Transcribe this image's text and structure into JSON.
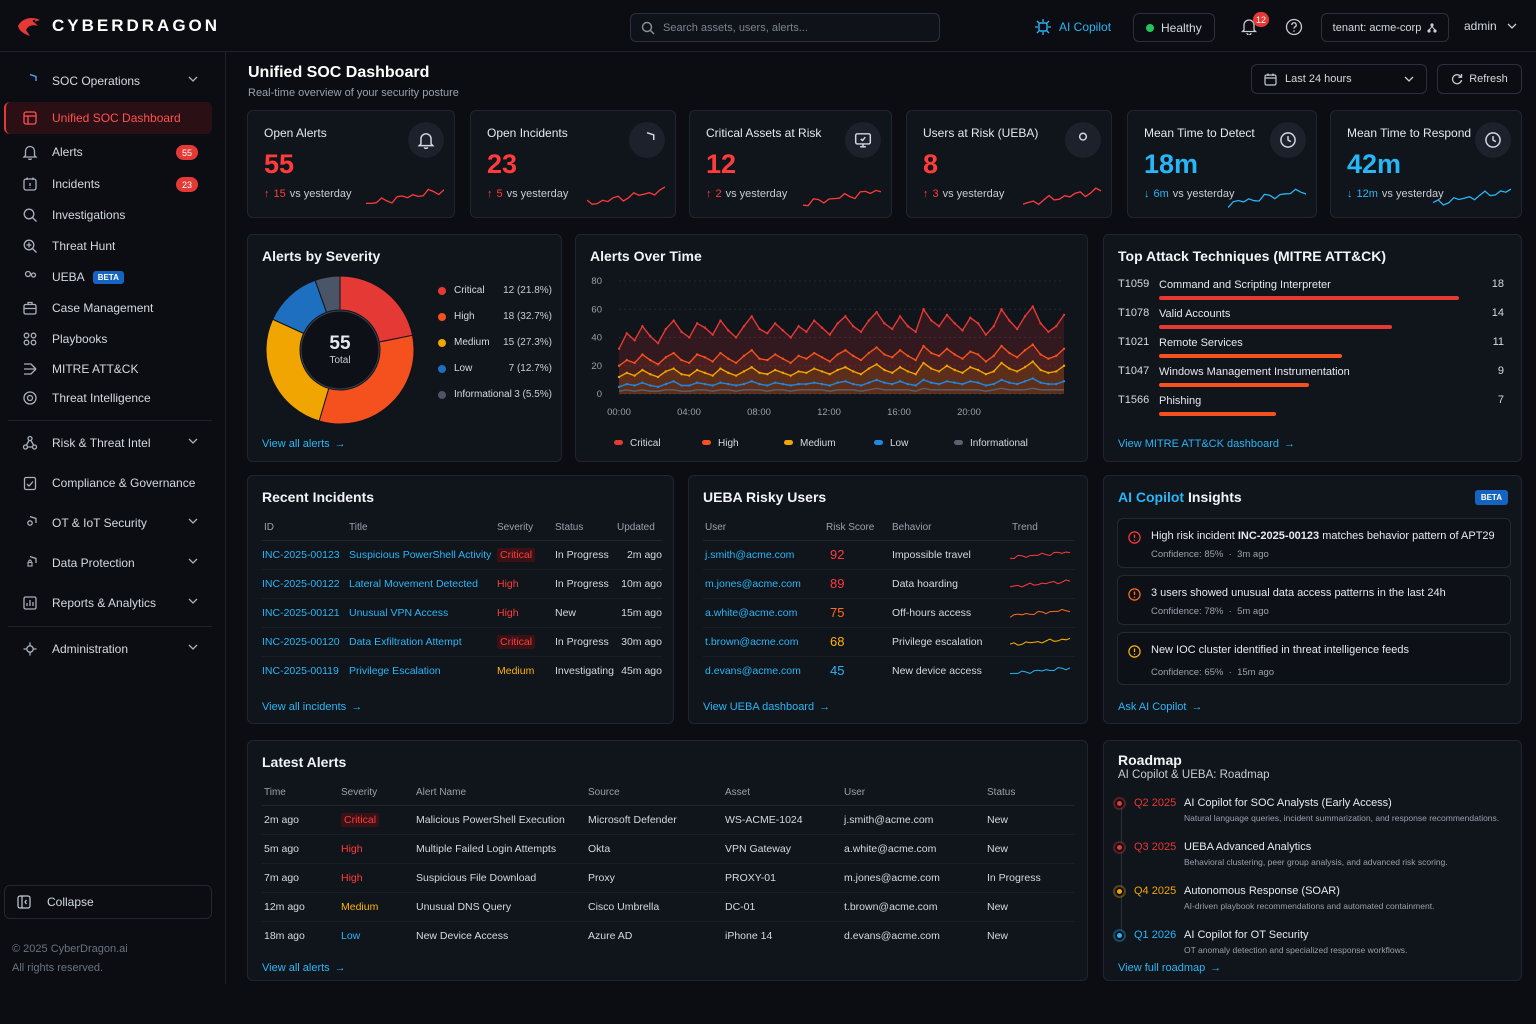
{
  "app": {
    "name": "CYBERDRAGON"
  },
  "topbar": {
    "search_placeholder": "Search assets, users, alerts...",
    "copilot_label": "AI Copilot",
    "health_label": "Healthy",
    "notifications_count": "12",
    "tenant_label": "tenant: acme-corp",
    "user_label": "admin"
  },
  "sidebar": {
    "items": [
      {
        "label": "SOC Operations",
        "icon": "shield-icon"
      },
      {
        "label": "Unified SOC Dashboard",
        "icon": "dashboard-icon"
      },
      {
        "label": "Alerts",
        "icon": "bell-icon",
        "badge": "55"
      },
      {
        "label": "Incidents",
        "icon": "incident-icon",
        "badge": "23"
      },
      {
        "label": "Investigations",
        "icon": "search-icon"
      },
      {
        "label": "Threat Hunt",
        "icon": "hunt-icon"
      },
      {
        "label": "UEBA",
        "icon": "users-icon",
        "tag": "BETA"
      },
      {
        "label": "Case Management",
        "icon": "briefcase-icon"
      },
      {
        "label": "Playbooks",
        "icon": "playbook-icon"
      },
      {
        "label": "MITRE ATT&CK",
        "icon": "matrix-icon"
      },
      {
        "label": "Threat Intelligence",
        "icon": "intel-icon"
      },
      {
        "label": "Risk & Threat Intel",
        "icon": "risk-icon"
      },
      {
        "label": "Compliance & Governance",
        "icon": "compliance-icon"
      },
      {
        "label": "OT & IoT Security",
        "icon": "ot-icon"
      },
      {
        "label": "Data Protection",
        "icon": "lock-shield-icon"
      },
      {
        "label": "Reports & Analytics",
        "icon": "report-icon"
      },
      {
        "label": "Administration",
        "icon": "admin-icon"
      }
    ],
    "collapse_label": "Collapse",
    "footer_copyright": "© 2025 CyberDragon.ai",
    "footer_rights": "All rights reserved."
  },
  "header": {
    "title": "Unified SOC Dashboard",
    "subtitle": "Real-time overview of your security posture",
    "range_label": "Last 24 hours",
    "refresh_label": "Refresh"
  },
  "kpis": [
    {
      "label": "Open Alerts",
      "value": "55",
      "delta": "15",
      "delta_suffix": "vs yesterday",
      "direction": "up",
      "color": "#ff3b3b",
      "icon": "bell-icon"
    },
    {
      "label": "Open Incidents",
      "value": "23",
      "delta": "5",
      "delta_suffix": "vs yesterday",
      "direction": "up",
      "color": "#ff3b3b",
      "icon": "shield-icon"
    },
    {
      "label": "Critical Assets at Risk",
      "value": "12",
      "delta": "2",
      "delta_suffix": "vs yesterday",
      "direction": "up",
      "color": "#ff3b3b",
      "icon": "monitor-icon"
    },
    {
      "label": "Users at Risk (UEBA)",
      "value": "8",
      "delta": "3",
      "delta_suffix": "vs yesterday",
      "direction": "up",
      "color": "#ff3b3b",
      "icon": "user-icon"
    },
    {
      "label": "Mean Time to Detect",
      "value": "18m",
      "delta": "6m",
      "delta_suffix": "vs yesterday",
      "direction": "down",
      "color": "#29b6f6",
      "icon": "clock-icon"
    },
    {
      "label": "Mean Time to Respond",
      "value": "42m",
      "delta": "12m",
      "delta_suffix": "vs yesterday",
      "direction": "down",
      "color": "#29b6f6",
      "icon": "clock-icon"
    }
  ],
  "severity": {
    "title": "Alerts by Severity",
    "total_value": "55",
    "total_label": "Total",
    "link": "View all alerts",
    "legend": [
      {
        "name": "Critical",
        "value": "12 (21.8%)",
        "count": 12,
        "color": "#e53935"
      },
      {
        "name": "High",
        "value": "18 (32.7%)",
        "count": 18,
        "color": "#f4511e"
      },
      {
        "name": "Medium",
        "value": "15 (27.3%)",
        "count": 15,
        "color": "#f0a500"
      },
      {
        "name": "Low",
        "value": "7 (12.7%)",
        "count": 7,
        "color": "#1e6fc0"
      },
      {
        "name": "Informational",
        "value": "3 (5.5%)",
        "count": 3,
        "color": "#4a5568"
      }
    ]
  },
  "chart_data": [
    {
      "type": "pie",
      "title": "Alerts by Severity",
      "categories": [
        "Critical",
        "High",
        "Medium",
        "Low",
        "Informational"
      ],
      "values": [
        12,
        18,
        15,
        7,
        3
      ]
    },
    {
      "type": "line",
      "title": "Alerts Over Time",
      "ylim": [
        0,
        80
      ],
      "yticks": [
        "80",
        "60",
        "40",
        "20",
        "0"
      ],
      "xticks": [
        "00:00",
        "04:00",
        "08:00",
        "12:00",
        "16:00",
        "20:00"
      ],
      "legend_position": "bottom",
      "series": [
        {
          "name": "Critical",
          "color": "#e53935",
          "values": [
            32,
            43,
            38,
            48,
            41,
            36,
            46,
            52,
            44,
            40,
            50,
            47,
            42,
            52,
            45,
            40,
            48,
            55,
            46,
            43,
            50,
            45,
            40,
            48,
            44,
            52,
            47,
            42,
            50,
            55,
            48,
            44,
            52,
            58,
            50,
            46,
            55,
            48,
            44,
            60,
            52,
            48,
            56,
            50,
            45,
            54,
            50,
            42,
            48,
            60,
            52,
            46,
            55,
            62,
            50,
            44,
            48,
            56
          ]
        },
        {
          "name": "High",
          "color": "#f4511e",
          "values": [
            20,
            24,
            22,
            28,
            24,
            21,
            26,
            29,
            24,
            22,
            28,
            26,
            23,
            29,
            25,
            22,
            27,
            31,
            25,
            24,
            28,
            25,
            22,
            27,
            25,
            29,
            26,
            23,
            28,
            31,
            27,
            24,
            29,
            33,
            28,
            26,
            31,
            27,
            24,
            34,
            29,
            27,
            32,
            28,
            25,
            30,
            28,
            23,
            27,
            34,
            29,
            26,
            31,
            35,
            28,
            25,
            27,
            32
          ]
        },
        {
          "name": "Medium",
          "color": "#f0a500",
          "values": [
            12,
            15,
            13,
            17,
            14,
            12,
            16,
            18,
            14,
            13,
            17,
            15,
            13,
            18,
            15,
            13,
            16,
            19,
            15,
            14,
            17,
            15,
            13,
            16,
            15,
            18,
            16,
            14,
            17,
            19,
            16,
            14,
            18,
            21,
            17,
            15,
            19,
            16,
            14,
            22,
            18,
            16,
            20,
            17,
            15,
            19,
            17,
            14,
            16,
            22,
            18,
            16,
            19,
            23,
            17,
            15,
            16,
            20
          ]
        },
        {
          "name": "Low",
          "color": "#1e88e5",
          "values": [
            5,
            7,
            6,
            8,
            6,
            5,
            7,
            9,
            6,
            6,
            8,
            7,
            6,
            8,
            7,
            6,
            7,
            9,
            7,
            6,
            8,
            7,
            6,
            7,
            7,
            8,
            7,
            6,
            8,
            9,
            7,
            6,
            8,
            10,
            8,
            7,
            9,
            7,
            6,
            10,
            8,
            7,
            9,
            8,
            7,
            9,
            8,
            6,
            7,
            10,
            8,
            7,
            9,
            11,
            8,
            7,
            7,
            9
          ]
        },
        {
          "name": "Informational",
          "color": "#5a6270",
          "values": [
            2,
            3,
            2,
            3,
            2,
            2,
            3,
            3,
            2,
            2,
            3,
            3,
            2,
            3,
            3,
            2,
            3,
            3,
            3,
            2,
            3,
            3,
            2,
            3,
            3,
            3,
            3,
            2,
            3,
            3,
            3,
            2,
            3,
            4,
            3,
            3,
            3,
            3,
            2,
            4,
            3,
            3,
            3,
            3,
            3,
            3,
            3,
            2,
            3,
            4,
            3,
            3,
            3,
            4,
            3,
            3,
            3,
            3
          ]
        }
      ]
    }
  ],
  "alerts_over_time": {
    "title": "Alerts Over Time"
  },
  "mitre": {
    "title": "Top Attack Techniques (MITRE ATT&CK)",
    "link": "View MITRE ATT&CK dashboard",
    "max": 18,
    "rows": [
      {
        "id": "T1059",
        "name": "Command and Scripting Interpreter",
        "count": 18,
        "color": "#e53935"
      },
      {
        "id": "T1078",
        "name": "Valid Accounts",
        "count": 14,
        "color": "#e53935"
      },
      {
        "id": "T1021",
        "name": "Remote Services",
        "count": 11,
        "color": "#f4511e"
      },
      {
        "id": "T1047",
        "name": "Windows Management Instrumentation",
        "count": 9,
        "color": "#f4511e"
      },
      {
        "id": "T1566",
        "name": "Phishing",
        "count": 7,
        "color": "#f4511e"
      }
    ]
  },
  "incidents": {
    "title": "Recent Incidents",
    "link": "View all incidents",
    "headers": [
      "ID",
      "Title",
      "Severity",
      "Status",
      "Updated"
    ],
    "rows": [
      {
        "id": "INC-2025-00123",
        "title": "Suspicious PowerShell Activity",
        "severity": "Critical",
        "status": "In Progress",
        "updated": "2m ago"
      },
      {
        "id": "INC-2025-00122",
        "title": "Lateral Movement Detected",
        "severity": "High",
        "status": "In Progress",
        "updated": "10m ago"
      },
      {
        "id": "INC-2025-00121",
        "title": "Unusual VPN Access",
        "severity": "High",
        "status": "New",
        "updated": "15m ago"
      },
      {
        "id": "INC-2025-00120",
        "title": "Data Exfiltration Attempt",
        "severity": "Critical",
        "status": "In Progress",
        "updated": "30m ago"
      },
      {
        "id": "INC-2025-00119",
        "title": "Privilege Escalation",
        "severity": "Medium",
        "status": "Investigating",
        "updated": "45m ago"
      }
    ]
  },
  "ueba": {
    "title": "UEBA Risky Users",
    "link": "View UEBA dashboard",
    "headers": [
      "User",
      "Risk Score",
      "Behavior",
      "Trend"
    ],
    "rows": [
      {
        "user": "j.smith@acme.com",
        "score": "92",
        "behavior": "Impossible travel",
        "color": "#ff3b3b"
      },
      {
        "user": "m.jones@acme.com",
        "score": "89",
        "behavior": "Data hoarding",
        "color": "#ff3b3b"
      },
      {
        "user": "a.white@acme.com",
        "score": "75",
        "behavior": "Off-hours access",
        "color": "#ff6d1f"
      },
      {
        "user": "t.brown@acme.com",
        "score": "68",
        "behavior": "Privilege escalation",
        "color": "#ffb300"
      },
      {
        "user": "d.evans@acme.com",
        "score": "45",
        "behavior": "New device access",
        "color": "#29b6f6"
      }
    ]
  },
  "copilot": {
    "title_prefix": "AI Copilot",
    "title_suffix": "Insights",
    "tag": "BETA",
    "link": "Ask AI Copilot",
    "insights": [
      {
        "pre": "High risk incident ",
        "bold": "INC-2025-00123",
        "post": " matches behavior pattern of APT29",
        "confidence": "Confidence: 85%",
        "time": "3m ago",
        "color": "#ff3b3b"
      },
      {
        "pre": "3 users showed unusual data access patterns in the last 24h",
        "bold": "",
        "post": "",
        "confidence": "Confidence: 78%",
        "time": "5m ago",
        "color": "#ff6d1f"
      },
      {
        "pre": "New IOC cluster identified in threat intelligence feeds",
        "bold": "",
        "post": "",
        "confidence": "Confidence: 65%",
        "time": "15m ago",
        "color": "#ffb300"
      }
    ]
  },
  "latest_alerts": {
    "title": "Latest Alerts",
    "link": "View all alerts",
    "headers": [
      "Time",
      "Severity",
      "Alert Name",
      "Source",
      "Asset",
      "User",
      "Status"
    ],
    "rows": [
      {
        "time": "2m ago",
        "severity": "Critical",
        "name": "Malicious PowerShell Execution",
        "source": "Microsoft Defender",
        "asset": "WS-ACME-1024",
        "user": "j.smith@acme.com",
        "status": "New"
      },
      {
        "time": "5m ago",
        "severity": "High",
        "name": "Multiple Failed Login Attempts",
        "source": "Okta",
        "asset": "VPN Gateway",
        "user": "a.white@acme.com",
        "status": "New"
      },
      {
        "time": "7m ago",
        "severity": "High",
        "name": "Suspicious File Download",
        "source": "Proxy",
        "asset": "PROXY-01",
        "user": "m.jones@acme.com",
        "status": "In Progress"
      },
      {
        "time": "12m ago",
        "severity": "Medium",
        "name": "Unusual DNS Query",
        "source": "Cisco Umbrella",
        "asset": "DC-01",
        "user": "t.brown@acme.com",
        "status": "New"
      },
      {
        "time": "18m ago",
        "severity": "Low",
        "name": "New Device Access",
        "source": "Azure AD",
        "asset": "iPhone 14",
        "user": "d.evans@acme.com",
        "status": "New"
      }
    ]
  },
  "roadmap": {
    "title": "Roadmap",
    "subtitle": "AI Copilot & UEBA: Roadmap",
    "link": "View full roadmap",
    "items": [
      {
        "quarter": "Q2 2025",
        "title": "AI Copilot for SOC Analysts (Early Access)",
        "desc": "Natural language queries, incident summarization, and response recommendations.",
        "color": "#e53935"
      },
      {
        "quarter": "Q3 2025",
        "title": "UEBA Advanced Analytics",
        "desc": "Behavioral clustering, peer group analysis, and advanced risk scoring.",
        "color": "#e53935"
      },
      {
        "quarter": "Q4 2025",
        "title": "Autonomous Response (SOAR)",
        "desc": "AI-driven playbook recommendations and automated containment.",
        "color": "#f0a500"
      },
      {
        "quarter": "Q1 2026",
        "title": "AI Copilot for OT Security",
        "desc": "OT anomaly detection and specialized response workflows.",
        "color": "#29b6f6"
      }
    ]
  }
}
